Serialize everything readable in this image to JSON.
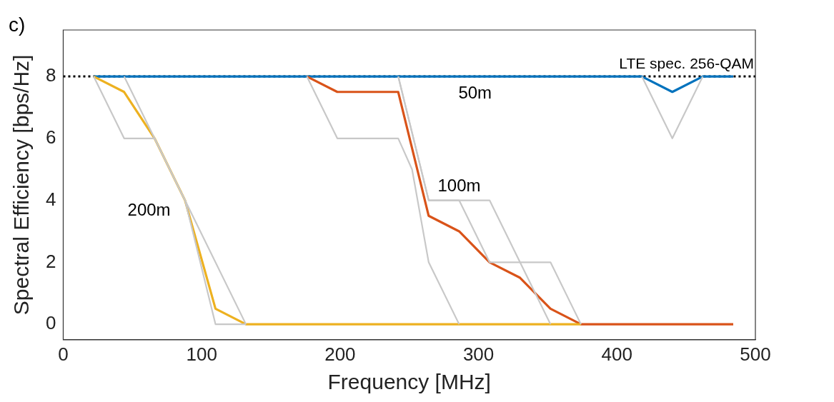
{
  "chart_data": {
    "type": "line",
    "title": "c)",
    "xlabel": "Frequency [MHz]",
    "ylabel": "Spectral Efficiency [bps/Hz]",
    "xlim": [
      0,
      500
    ],
    "xticks": [
      0,
      100,
      200,
      300,
      400,
      500
    ],
    "ylim": [
      -0.5,
      9.5
    ],
    "yticks": [
      0,
      2,
      4,
      6,
      8
    ],
    "grid": false,
    "legend": false,
    "marker": "none",
    "line_style": "solid",
    "series": [
      {
        "color": "#c8c8c8",
        "x": [
          22,
          44,
          66,
          88,
          110,
          132
        ],
        "values": [
          8,
          6,
          6,
          4,
          0,
          0
        ]
      },
      {
        "color": "#c8c8c8",
        "x": [
          44,
          66,
          88,
          132
        ],
        "values": [
          8,
          6,
          4,
          0
        ]
      },
      {
        "color": "#c8c8c8",
        "x": [
          176,
          198,
          242,
          252,
          264,
          286
        ],
        "values": [
          8,
          6,
          6,
          5,
          2,
          0
        ]
      },
      {
        "color": "#c8c8c8",
        "x": [
          242,
          264,
          308,
          352
        ],
        "values": [
          8,
          4,
          4,
          0
        ]
      },
      {
        "color": "#c8c8c8",
        "x": [
          242,
          264,
          286,
          308,
          352,
          374
        ],
        "values": [
          8,
          4,
          4,
          2,
          2,
          0
        ]
      },
      {
        "color": "#c8c8c8",
        "x": [
          418,
          440,
          462
        ],
        "values": [
          8,
          6,
          8
        ]
      },
      {
        "color": "#edb120",
        "x": [
          22,
          44,
          66,
          88,
          110,
          132,
          154,
          176,
          198,
          220,
          242,
          264,
          286,
          308,
          330,
          352,
          374
        ],
        "values": [
          8,
          7.5,
          6,
          4,
          0.5,
          0,
          0,
          0,
          0,
          0,
          0,
          0,
          0,
          0,
          0,
          0,
          0
        ]
      },
      {
        "color": "#d95319",
        "x": [
          176,
          198,
          242,
          264,
          286,
          308,
          330,
          352,
          374,
          396,
          418,
          440,
          462,
          484
        ],
        "values": [
          8,
          7.5,
          7.5,
          3.5,
          3,
          2,
          1.5,
          0.5,
          0,
          0,
          0,
          0,
          0,
          0
        ]
      },
      {
        "color": "#0072bd",
        "x": [
          22,
          44,
          66,
          88,
          110,
          132,
          154,
          176,
          198,
          220,
          242,
          264,
          286,
          308,
          330,
          352,
          374,
          396,
          418,
          440,
          462,
          484
        ],
        "values": [
          8,
          8,
          8,
          8,
          8,
          8,
          8,
          8,
          8,
          8,
          8,
          8,
          8,
          8,
          8,
          8,
          8,
          8,
          8,
          7.5,
          8,
          8
        ]
      }
    ],
    "ref_lines": [
      {
        "axis": "y",
        "value": 8,
        "label": "LTE spec. 256-QAM",
        "color": "#000000",
        "line_style": "dotted"
      }
    ],
    "annotations": [
      "50m",
      "100m",
      "200m"
    ]
  }
}
